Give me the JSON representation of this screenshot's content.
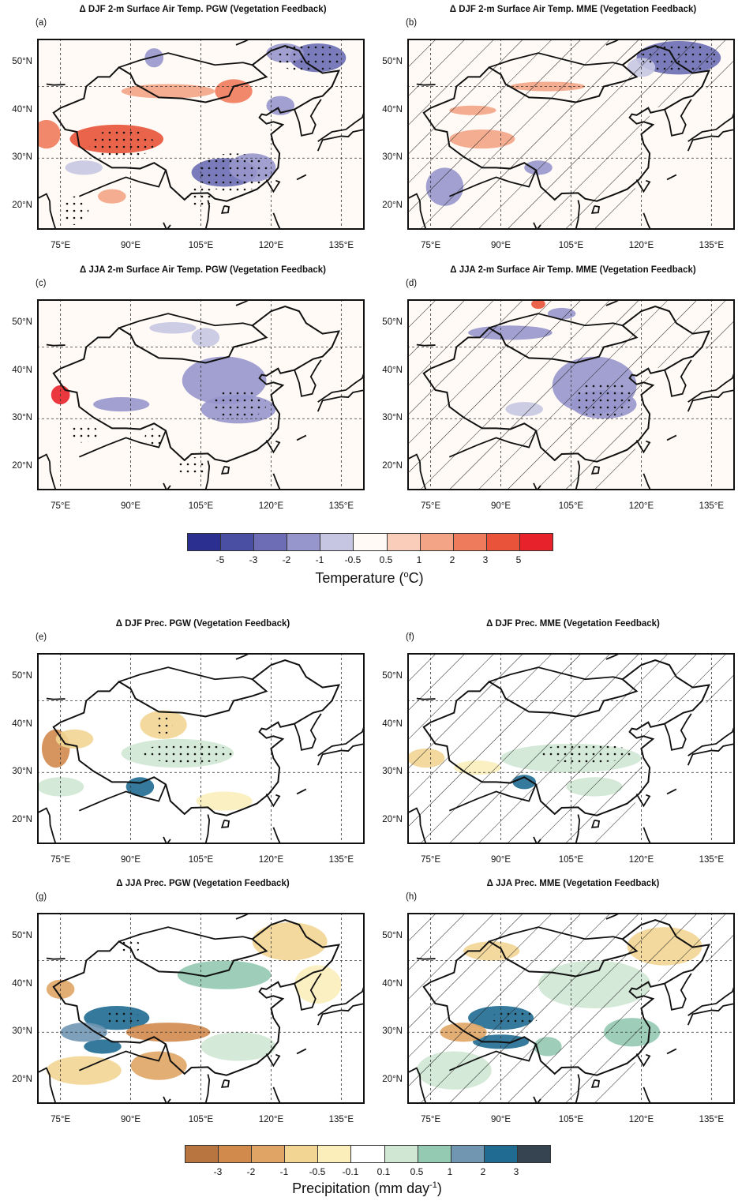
{
  "panels": [
    {
      "label": "(a)",
      "title": "Δ DJF 2-m Surface Air Temp. PGW (Vegetation Feedback)",
      "var": "temp",
      "hatch": false
    },
    {
      "label": "(b)",
      "title": "Δ DJF 2-m Surface Air Temp. MME (Vegetation Feedback)",
      "var": "temp",
      "hatch": true
    },
    {
      "label": "(c)",
      "title": "Δ JJA 2-m Surface Air Temp. PGW (Vegetation Feedback)",
      "var": "temp",
      "hatch": false
    },
    {
      "label": "(d)",
      "title": "Δ JJA 2-m Surface Air Temp. MME (Vegetation Feedback)",
      "var": "temp",
      "hatch": true
    },
    {
      "label": "(e)",
      "title": "Δ DJF Prec. PGW (Vegetation Feedback)",
      "var": "prec",
      "hatch": false
    },
    {
      "label": "(f)",
      "title": "Δ DJF Prec. MME (Vegetation Feedback)",
      "var": "prec",
      "hatch": true
    },
    {
      "label": "(g)",
      "title": "Δ JJA Prec. PGW (Vegetation Feedback)",
      "var": "prec",
      "hatch": false
    },
    {
      "label": "(h)",
      "title": "Δ JJA Prec. MME (Vegetation Feedback)",
      "var": "prec",
      "hatch": true
    }
  ],
  "lat_ticks": [
    "50°N",
    "40°N",
    "30°N",
    "20°N"
  ],
  "lon_ticks": [
    "75°E",
    "90°E",
    "105°E",
    "120°E",
    "135°E"
  ],
  "map_extent": {
    "lon": [
      70,
      140
    ],
    "lat": [
      15,
      55
    ]
  },
  "colorbars": {
    "temp": {
      "title_pre": "Temperature (",
      "title_sup": "o",
      "title_post": "C)",
      "labels": [
        "-5",
        "-3",
        "-2",
        "-1",
        "-0.5",
        "0.5",
        "1",
        "2",
        "3",
        "5"
      ],
      "colors": [
        "#2b2f8f",
        "#4a4fa3",
        "#6c6db5",
        "#9796cc",
        "#c6c6e3",
        "#fffaf5",
        "#f9cdb9",
        "#f4a486",
        "#ef7b5d",
        "#e8533a",
        "#e8222a"
      ]
    },
    "prec": {
      "title_pre": "Precipitation (mm day",
      "title_sup": "-1",
      "title_post": ")",
      "labels": [
        "-3",
        "-2",
        "-1",
        "-0.5",
        "-0.1",
        "0.1",
        "0.5",
        "1",
        "2",
        "3"
      ],
      "colors": [
        "#b97540",
        "#d18a4c",
        "#e0a564",
        "#f2d593",
        "#fbeebb",
        "#ffffff",
        "#cfe7d3",
        "#94c9b2",
        "#7096b2",
        "#1f6b91",
        "#364452"
      ]
    }
  }
}
